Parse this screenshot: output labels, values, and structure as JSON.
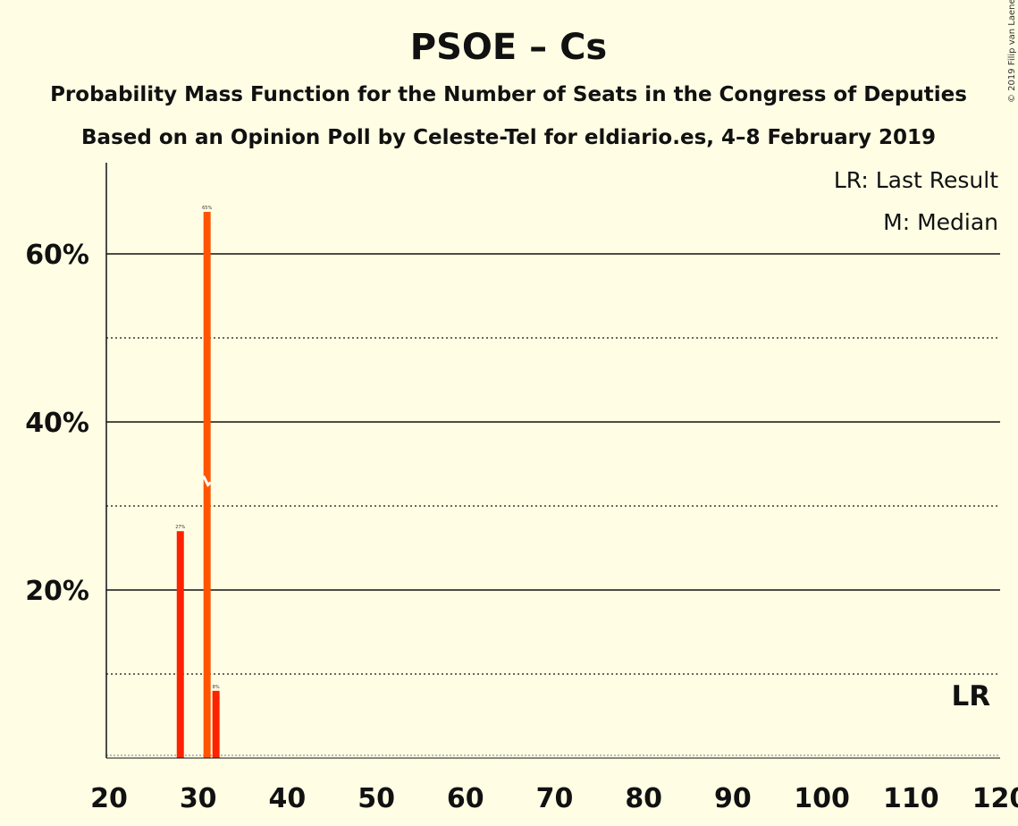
{
  "title": "PSOE – Cs",
  "subtitle1": "Probability Mass Function for the Number of Seats in the Congress of Deputies",
  "subtitle2": "Based on an Opinion Poll by Celeste-Tel for eldiario.es, 4–8 February 2019",
  "legend": {
    "lr": "LR: Last Result",
    "m": "M: Median"
  },
  "copyright": "© 2019 Filip van Laenen",
  "lr_marker": "LR",
  "colors": {
    "background": "#FFFEE4",
    "bar": "#FF2200",
    "median_bar": "#FF5500",
    "text": "#111111"
  },
  "chart_data": {
    "type": "bar",
    "x": [
      28,
      31,
      32
    ],
    "values": [
      27,
      65,
      8
    ],
    "data_labels": [
      "27%",
      "65%",
      "8%"
    ],
    "median_seat": 31,
    "last_result_seat": 117,
    "xlim": [
      20,
      120
    ],
    "ylim": [
      0,
      70
    ],
    "x_ticks": [
      "20",
      "30",
      "40",
      "50",
      "60",
      "70",
      "80",
      "90",
      "100",
      "110",
      "120"
    ],
    "y_ticks": [
      "20%",
      "40%",
      "60%"
    ],
    "grid": {
      "solid": [
        20,
        40,
        60
      ],
      "dotted": [
        10,
        30,
        50
      ]
    }
  }
}
